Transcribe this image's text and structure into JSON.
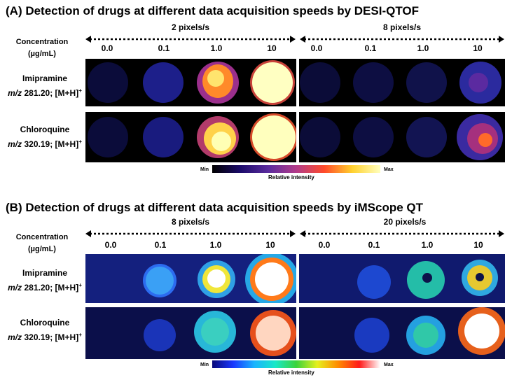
{
  "colors": {
    "cmap_a": [
      "#000000",
      "#1b0b6a",
      "#5a2b9e",
      "#b23b8a",
      "#ff4a2a",
      "#ffd12e",
      "#ffffbe"
    ],
    "cmap_b": [
      "#0a0a7a",
      "#1a38ff",
      "#1ab3ff",
      "#18e8c8",
      "#3bd33b",
      "#e6f01e",
      "#ff8a00",
      "#ff1a1a",
      "#ffffff"
    ]
  },
  "panelA": {
    "title": "(A) Detection of drugs at different data acquisition speeds by DESI-QTOF",
    "concentration_label": [
      "Concentration",
      "(µg/mL)"
    ],
    "speeds": [
      "2 pixels/s",
      "8 pixels/s"
    ],
    "columns": [
      "0.0",
      "0.1",
      "1.0",
      "10",
      "0.0",
      "0.1",
      "1.0",
      "10"
    ],
    "rows": [
      {
        "drug": "Imipramine",
        "mz_prefix": "m/z",
        "mz_value": " 281.20; [M+H]",
        "charge": "+"
      },
      {
        "drug": "Chloroquine",
        "mz_prefix": "m/z",
        "mz_value": " 320.19; [M+H]",
        "charge": "+"
      }
    ],
    "colorbar": {
      "min": "Min",
      "max": "Max",
      "title": "Relative intensity"
    }
  },
  "panelB": {
    "title": "(B) Detection of drugs at different data acquisition speeds by iMScope QT",
    "concentration_label": [
      "Concentration",
      "(µg/mL)"
    ],
    "speeds": [
      "8 pixels/s",
      "20 pixels/s"
    ],
    "columns": [
      "0.0",
      "0.1",
      "1.0",
      "10",
      "0.0",
      "0.1",
      "1.0",
      "10"
    ],
    "rows": [
      {
        "drug": "Imipramine",
        "mz_prefix": "m/z",
        "mz_value": " 281.20; [M+H]",
        "charge": "+"
      },
      {
        "drug": "Chloroquine",
        "mz_prefix": "m/z",
        "mz_value": " 320.19; [M+H]",
        "charge": "+"
      }
    ],
    "colorbar": {
      "min": "Min",
      "max": "Max",
      "title": "Relative intensity"
    }
  }
}
